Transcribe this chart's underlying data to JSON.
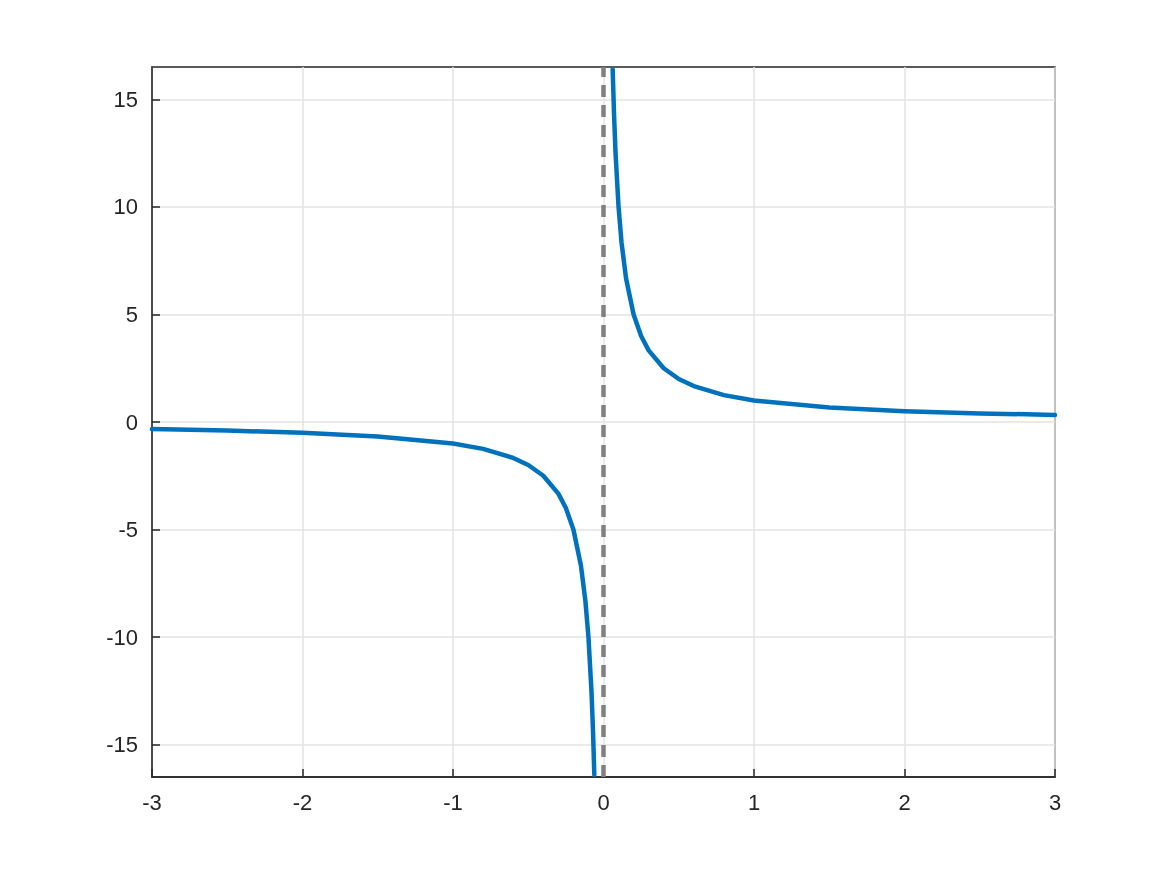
{
  "chart_data": {
    "type": "line",
    "xlim": [
      -3,
      3
    ],
    "xticks": [
      -3,
      -2,
      -1,
      0,
      1,
      2,
      3
    ],
    "ylim": [
      -16.5,
      16.5
    ],
    "yticks": [
      -15,
      -10,
      -5,
      0,
      5,
      10,
      15
    ],
    "grid": true,
    "marker": "none",
    "line_style": "solid",
    "series": [
      {
        "color": "#0072bd",
        "x": [
          -3,
          -2.5,
          -2,
          -1.5,
          -1,
          -0.8,
          -0.6,
          -0.5,
          -0.4,
          -0.3,
          -0.25,
          -0.2,
          -0.15,
          -0.12,
          -0.1,
          -0.08,
          -0.07,
          -0.061,
          0,
          0.061,
          0.07,
          0.08,
          0.1,
          0.12,
          0.15,
          0.2,
          0.25,
          0.3,
          0.4,
          0.5,
          0.6,
          0.8,
          1,
          1.5,
          2,
          2.5,
          3
        ],
        "values": [
          -0.33,
          -0.4,
          -0.5,
          -0.67,
          -1,
          -1.25,
          -1.67,
          -2,
          -2.5,
          -3.33,
          -4,
          -5,
          -6.67,
          -8.33,
          -10,
          -12.5,
          -14.3,
          -16.4,
          null,
          16.4,
          14.3,
          12.5,
          10,
          8.33,
          6.67,
          5,
          4,
          3.33,
          2.5,
          2,
          1.67,
          1.25,
          1,
          0.67,
          0.5,
          0.4,
          0.33
        ]
      }
    ],
    "ref_lines": [
      {
        "axis": "x",
        "value": 0,
        "color": "#808080",
        "line_style": "dashed"
      }
    ]
  }
}
